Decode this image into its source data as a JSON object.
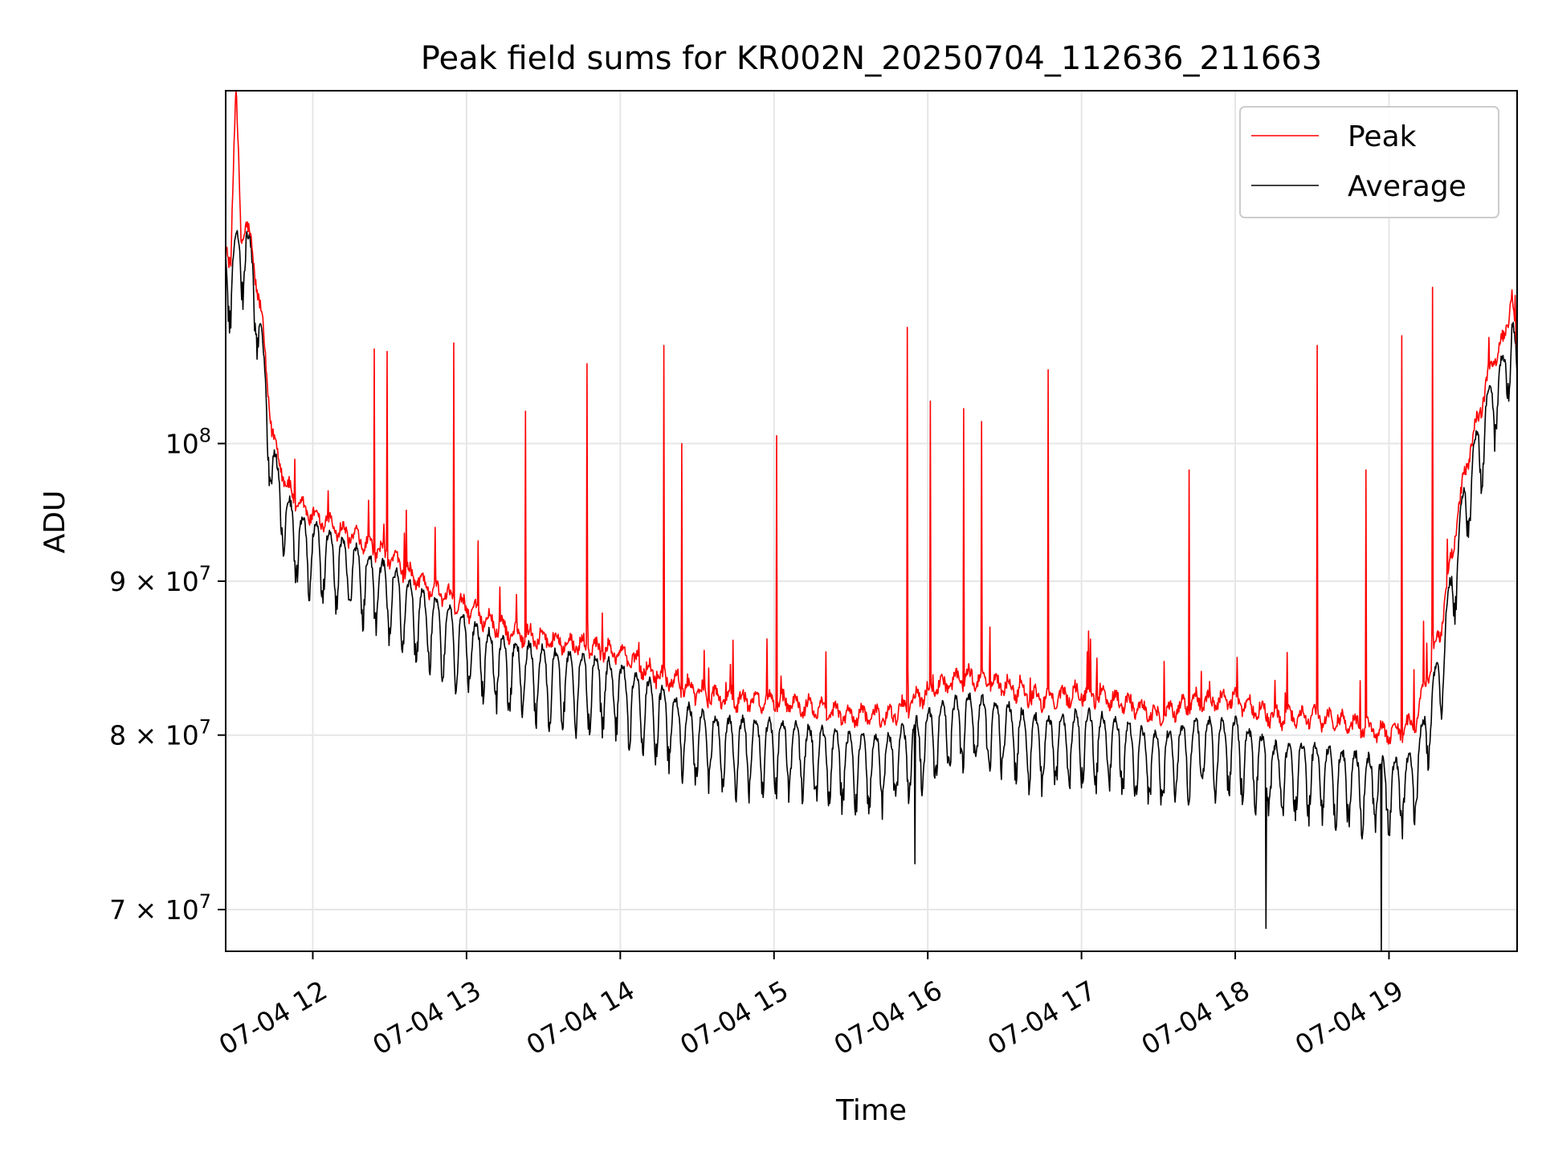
{
  "chart_data": {
    "type": "line",
    "title": "Peak field sums for KR002N_20250704_112636_211663",
    "xlabel": "Time",
    "ylabel": "ADU",
    "xscale": "time",
    "yscale": "log",
    "xlim": [
      "2025-07-04 11:26",
      "2025-07-04 19:50"
    ],
    "ylim": [
      67800000,
      131000000
    ],
    "grid": true,
    "legend_position": "top-right",
    "x_ticks": [
      {
        "value": "2025-07-04 12:00",
        "label": "07-04 12"
      },
      {
        "value": "2025-07-04 13:00",
        "label": "07-04 13"
      },
      {
        "value": "2025-07-04 14:00",
        "label": "07-04 14"
      },
      {
        "value": "2025-07-04 15:00",
        "label": "07-04 15"
      },
      {
        "value": "2025-07-04 16:00",
        "label": "07-04 16"
      },
      {
        "value": "2025-07-04 17:00",
        "label": "07-04 17"
      },
      {
        "value": "2025-07-04 18:00",
        "label": "07-04 18"
      },
      {
        "value": "2025-07-04 19:00",
        "label": "07-04 19"
      }
    ],
    "y_ticks": [
      {
        "value": 70000000,
        "base": "7 × 10",
        "exp": "7"
      },
      {
        "value": 80000000,
        "base": "8 × 10",
        "exp": "7"
      },
      {
        "value": 90000000,
        "base": "9 × 10",
        "exp": "7"
      },
      {
        "value": 100000000,
        "base": "10",
        "exp": "8"
      }
    ],
    "series": [
      {
        "name": "Peak",
        "color": "#ff0000",
        "x": [
          "2025-07-04 11:26",
          "2025-07-04 11:28",
          "2025-07-04 11:30",
          "2025-07-04 11:32",
          "2025-07-04 11:34",
          "2025-07-04 11:36",
          "2025-07-04 11:38",
          "2025-07-04 11:40",
          "2025-07-04 11:42",
          "2025-07-04 11:44",
          "2025-07-04 11:46",
          "2025-07-04 11:48",
          "2025-07-04 11:50",
          "2025-07-04 11:55",
          "2025-07-04 12:00",
          "2025-07-04 12:10",
          "2025-07-04 12:20",
          "2025-07-04 12:30",
          "2025-07-04 12:40",
          "2025-07-04 12:50",
          "2025-07-04 13:00",
          "2025-07-04 13:15",
          "2025-07-04 13:30",
          "2025-07-04 13:45",
          "2025-07-04 14:00",
          "2025-07-04 14:15",
          "2025-07-04 14:30",
          "2025-07-04 14:45",
          "2025-07-04 15:00",
          "2025-07-04 15:15",
          "2025-07-04 15:30",
          "2025-07-04 15:45",
          "2025-07-04 16:00",
          "2025-07-04 16:15",
          "2025-07-04 16:30",
          "2025-07-04 16:45",
          "2025-07-04 17:00",
          "2025-07-04 17:15",
          "2025-07-04 17:30",
          "2025-07-04 17:45",
          "2025-07-04 18:00",
          "2025-07-04 18:15",
          "2025-07-04 18:30",
          "2025-07-04 18:45",
          "2025-07-04 19:00",
          "2025-07-04 19:10",
          "2025-07-04 19:20",
          "2025-07-04 19:30",
          "2025-07-04 19:40",
          "2025-07-04 19:45",
          "2025-07-04 19:48",
          "2025-07-04 19:50"
        ],
        "y": [
          116000000,
          115000000,
          131000000,
          117000000,
          118000000,
          116000000,
          113000000,
          110000000,
          105000000,
          101000000,
          99000000,
          98000000,
          96500000,
          95000000,
          94500000,
          93500000,
          92500000,
          91500000,
          90000000,
          89000000,
          88000000,
          86500000,
          86000000,
          85500000,
          85000000,
          83500000,
          82500000,
          82000000,
          82000000,
          81500000,
          81000000,
          81000000,
          82500000,
          83500000,
          83000000,
          82000000,
          82500000,
          82000000,
          81000000,
          82000000,
          82000000,
          81000000,
          81000000,
          80500000,
          80000000,
          80500000,
          86500000,
          98000000,
          106000000,
          108000000,
          112000000,
          107000000
        ]
      },
      {
        "name": "Average",
        "color": "#000000",
        "x": [
          "2025-07-04 11:26",
          "2025-07-04 11:28",
          "2025-07-04 11:30",
          "2025-07-04 11:32",
          "2025-07-04 11:34",
          "2025-07-04 11:36",
          "2025-07-04 11:38",
          "2025-07-04 11:40",
          "2025-07-04 11:42",
          "2025-07-04 11:44",
          "2025-07-04 11:46",
          "2025-07-04 11:48",
          "2025-07-04 11:50",
          "2025-07-04 11:55",
          "2025-07-04 12:00",
          "2025-07-04 12:10",
          "2025-07-04 12:20",
          "2025-07-04 12:30",
          "2025-07-04 12:40",
          "2025-07-04 12:50",
          "2025-07-04 13:00",
          "2025-07-04 13:15",
          "2025-07-04 13:30",
          "2025-07-04 13:45",
          "2025-07-04 14:00",
          "2025-07-04 14:15",
          "2025-07-04 14:30",
          "2025-07-04 14:45",
          "2025-07-04 15:00",
          "2025-07-04 15:15",
          "2025-07-04 15:30",
          "2025-07-04 15:45",
          "2025-07-04 16:00",
          "2025-07-04 16:15",
          "2025-07-04 16:30",
          "2025-07-04 16:45",
          "2025-07-04 17:00",
          "2025-07-04 17:15",
          "2025-07-04 17:30",
          "2025-07-04 17:45",
          "2025-07-04 18:00",
          "2025-07-04 18:15",
          "2025-07-04 18:30",
          "2025-07-04 18:45",
          "2025-07-04 19:00",
          "2025-07-04 19:10",
          "2025-07-04 19:20",
          "2025-07-04 19:30",
          "2025-07-04 19:40",
          "2025-07-04 19:45",
          "2025-07-04 19:48",
          "2025-07-04 19:50"
        ],
        "y": [
          115000000,
          114000000,
          116000000,
          116500000,
          117000000,
          115000000,
          112000000,
          108000000,
          103000000,
          99500000,
          97500000,
          96500000,
          95000000,
          93500000,
          93000000,
          92000000,
          91000000,
          90000000,
          88500000,
          87500000,
          86500000,
          85000000,
          84500000,
          84000000,
          83500000,
          82000000,
          80500000,
          80000000,
          80000000,
          79500000,
          79000000,
          79000000,
          80500000,
          81500000,
          81000000,
          80000000,
          80500000,
          80000000,
          79000000,
          80000000,
          80000000,
          78500000,
          78500000,
          78000000,
          77500000,
          78000000,
          84500000,
          96500000,
          104000000,
          106000000,
          110000000,
          105000000
        ]
      }
    ],
    "spikes": {
      "Peak": [
        {
          "x": "2025-07-04 11:30",
          "y": 131000000
        },
        {
          "x": "2025-07-04 12:24",
          "y": 107500000
        },
        {
          "x": "2025-07-04 12:29",
          "y": 107300000
        },
        {
          "x": "2025-07-04 12:55",
          "y": 108000000
        },
        {
          "x": "2025-07-04 13:23",
          "y": 102500000
        },
        {
          "x": "2025-07-04 13:47",
          "y": 106300000
        },
        {
          "x": "2025-07-04 14:17",
          "y": 107800000
        },
        {
          "x": "2025-07-04 14:24",
          "y": 100000000
        },
        {
          "x": "2025-07-04 15:01",
          "y": 100600000
        },
        {
          "x": "2025-07-04 15:52",
          "y": 109300000
        },
        {
          "x": "2025-07-04 16:01",
          "y": 103300000
        },
        {
          "x": "2025-07-04 16:14",
          "y": 102700000
        },
        {
          "x": "2025-07-04 16:21",
          "y": 101700000
        },
        {
          "x": "2025-07-04 16:47",
          "y": 105800000
        },
        {
          "x": "2025-07-04 17:42",
          "y": 98000000
        },
        {
          "x": "2025-07-04 18:32",
          "y": 107800000
        },
        {
          "x": "2025-07-04 18:51",
          "y": 98000000
        },
        {
          "x": "2025-07-04 19:05",
          "y": 108600000
        },
        {
          "x": "2025-07-04 19:17",
          "y": 112700000
        }
      ],
      "Average": [
        {
          "x": "2025-07-04 18:57",
          "y": 67800000
        },
        {
          "x": "2025-07-04 18:12",
          "y": 69000000
        },
        {
          "x": "2025-07-04 15:55",
          "y": 72500000
        }
      ]
    }
  }
}
